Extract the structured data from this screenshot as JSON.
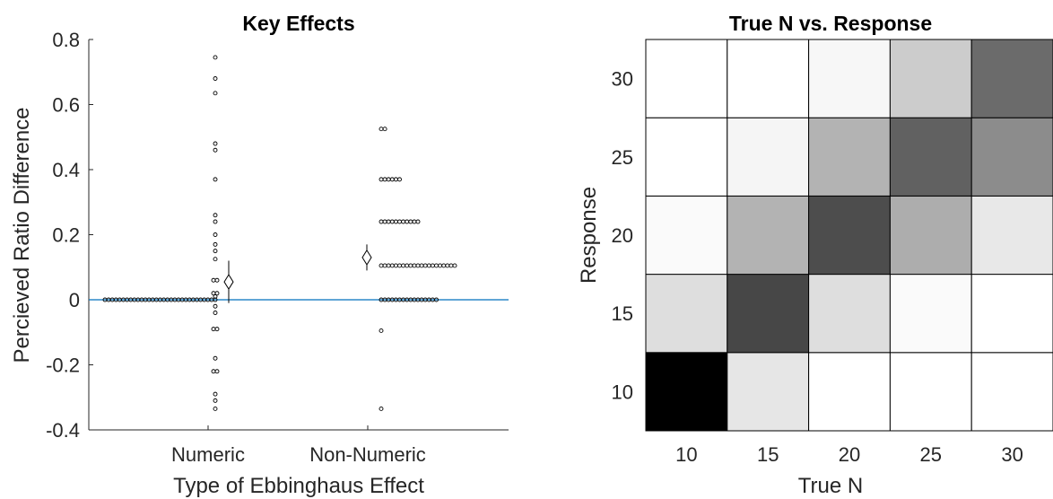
{
  "chart_data": [
    {
      "type": "scatter",
      "title": "Key Effects",
      "xlabel": "Type of Ebbinghaus Effect",
      "ylabel": "Percieved Ratio Difference",
      "ylim": [
        -0.4,
        0.8
      ],
      "yticks": [
        -0.4,
        -0.2,
        0,
        0.2,
        0.4,
        0.6,
        0.8
      ],
      "ytick_labels": [
        "-0.4",
        "-0.2",
        "0",
        "0.2",
        "0.4",
        "0.6",
        "0.8"
      ],
      "categories": [
        "Numeric",
        "Non-Numeric"
      ],
      "reference_line": {
        "y": 0,
        "color": "#0072BD"
      },
      "groups": [
        {
          "name": "Numeric",
          "points": [
            [
              0.745,
              1
            ],
            [
              0.68,
              1
            ],
            [
              0.635,
              1
            ],
            [
              0.48,
              1
            ],
            [
              0.46,
              1
            ],
            [
              0.37,
              1
            ],
            [
              0.26,
              1
            ],
            [
              0.24,
              1
            ],
            [
              0.2,
              1
            ],
            [
              0.17,
              1
            ],
            [
              0.15,
              1
            ],
            [
              0.125,
              1
            ],
            [
              0.06,
              2
            ],
            [
              0.02,
              2
            ],
            [
              0.01,
              1
            ],
            [
              0,
              31
            ],
            [
              -0.02,
              1
            ],
            [
              -0.04,
              1
            ],
            [
              -0.09,
              2
            ],
            [
              -0.18,
              1
            ],
            [
              -0.22,
              2
            ],
            [
              -0.29,
              1
            ],
            [
              -0.31,
              1
            ],
            [
              -0.335,
              1
            ]
          ],
          "mean": 0.055,
          "ci": [
            -0.01,
            0.12
          ]
        },
        {
          "name": "Non-Numeric",
          "points": [
            [
              0.525,
              2
            ],
            [
              0.37,
              6
            ],
            [
              0.24,
              11
            ],
            [
              0.105,
              21
            ],
            [
              0,
              16
            ],
            [
              -0.095,
              1
            ],
            [
              -0.335,
              1
            ]
          ],
          "mean": 0.13,
          "ci": [
            0.09,
            0.17
          ]
        }
      ],
      "marker_color": "#000000"
    },
    {
      "type": "heatmap",
      "title": "True N vs. Response",
      "xlabel": "True N",
      "ylabel": "Response",
      "x": [
        "10",
        "15",
        "20",
        "25",
        "30"
      ],
      "y": [
        "10",
        "15",
        "20",
        "25",
        "30"
      ],
      "colormap": "gray (white = 0, black = max)",
      "values": [
        [
          1.0,
          0.1,
          0.0,
          0.0,
          0.0
        ],
        [
          0.13,
          0.72,
          0.13,
          0.02,
          0.0
        ],
        [
          0.02,
          0.3,
          0.7,
          0.32,
          0.09
        ],
        [
          0.0,
          0.04,
          0.3,
          0.62,
          0.45
        ],
        [
          0.0,
          0.0,
          0.03,
          0.2,
          0.58
        ]
      ]
    }
  ]
}
